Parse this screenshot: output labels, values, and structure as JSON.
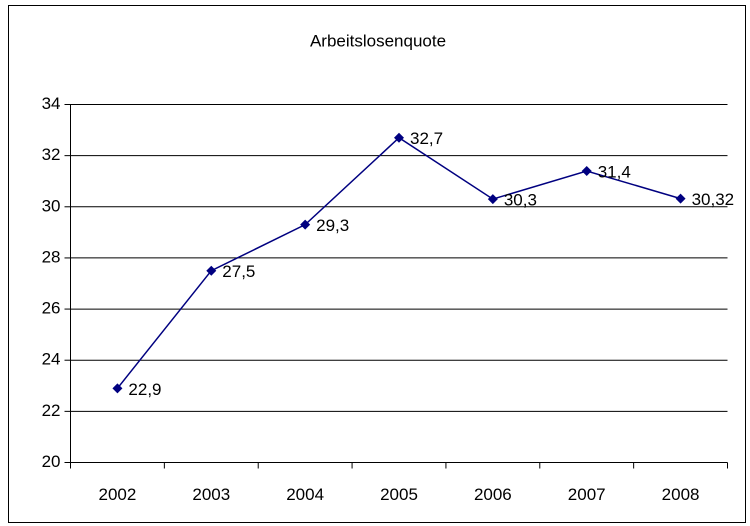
{
  "chart_data": {
    "type": "line",
    "title": "Arbeitslosenquote",
    "categories": [
      "2002",
      "2003",
      "2004",
      "2005",
      "2006",
      "2007",
      "2008"
    ],
    "series": [
      {
        "name": "Arbeitslosenquote",
        "color": "#000080",
        "values": [
          22.9,
          27.5,
          29.3,
          32.7,
          30.3,
          31.4,
          30.32
        ],
        "value_labels": [
          "22,9",
          "27,5",
          "29,3",
          "32,7",
          "30,3",
          "31,4",
          "30,32"
        ]
      }
    ],
    "ylim": [
      20,
      34
    ],
    "yticks": [
      20,
      22,
      24,
      26,
      28,
      30,
      32,
      34
    ],
    "grid": true
  }
}
